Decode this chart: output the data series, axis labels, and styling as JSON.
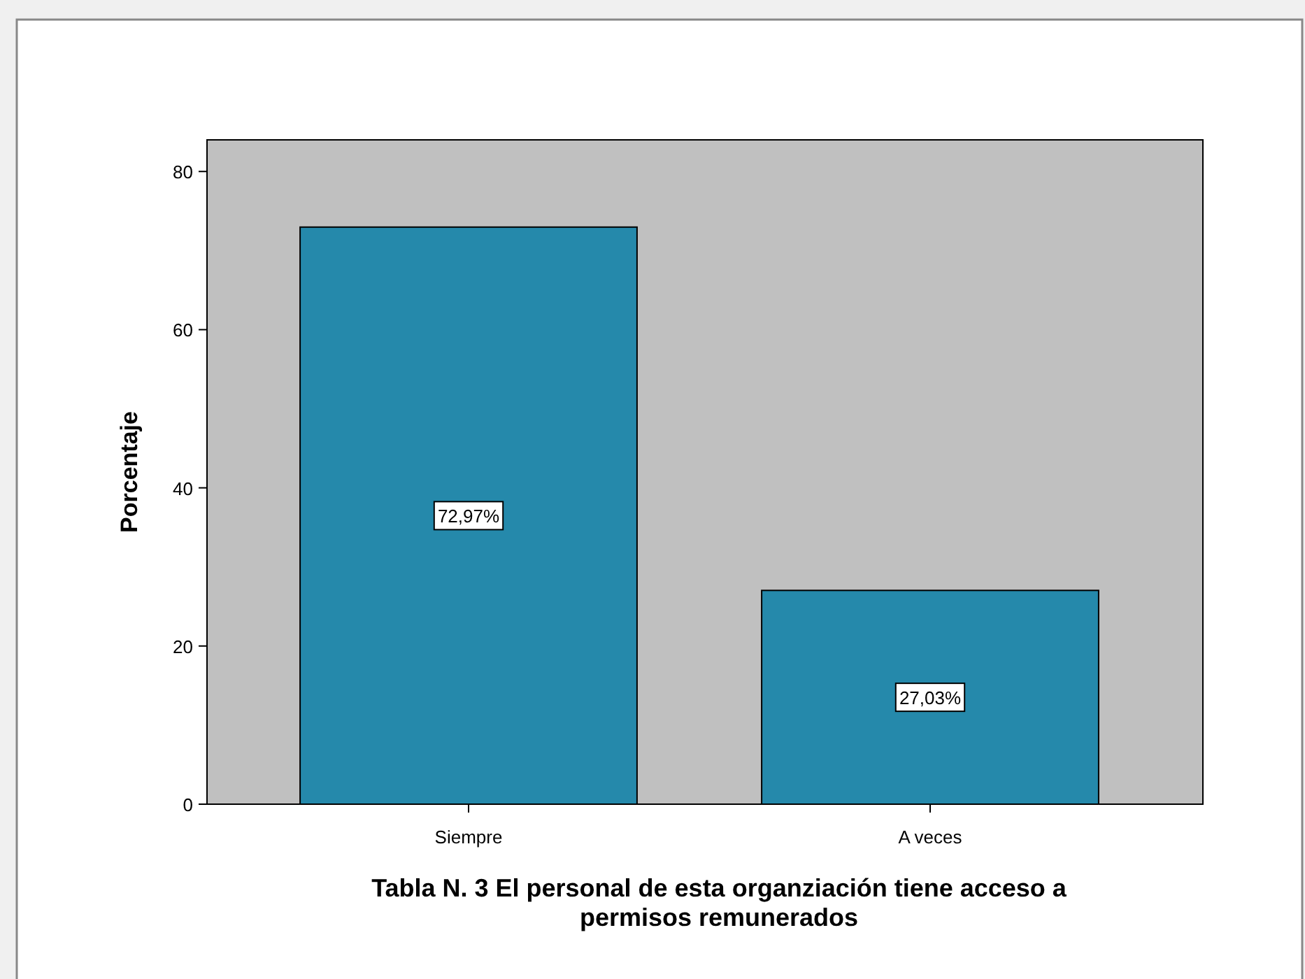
{
  "chart_data": {
    "type": "bar",
    "title": "Tabla N. 3 El personal de esta organziación tiene acceso a permisos remunerados",
    "ylabel": "Porcentaje",
    "categories": [
      "Siempre",
      "A veces"
    ],
    "values": [
      72.97,
      27.03
    ],
    "value_labels": [
      "72,97%",
      "27,03%"
    ],
    "color": "#2589ab",
    "ylim": [
      0,
      84
    ],
    "yticks": [
      0,
      20,
      40,
      60,
      80
    ],
    "grid": false
  }
}
